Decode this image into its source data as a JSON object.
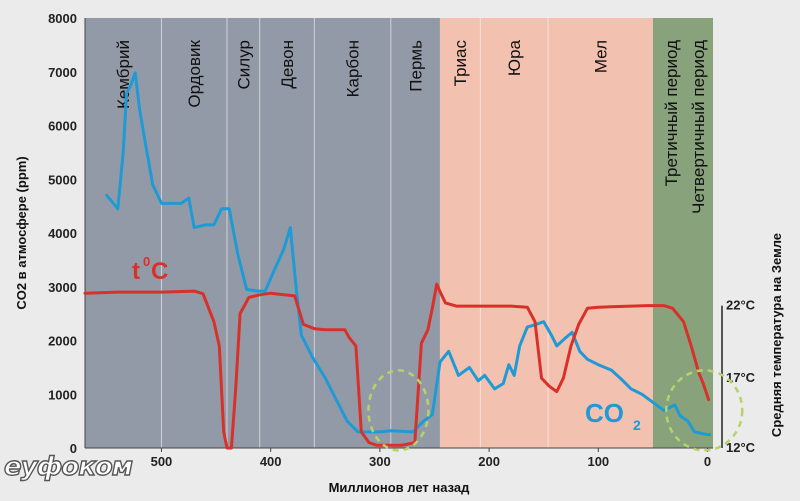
{
  "chart_data": {
    "type": "line",
    "x_axis": {
      "label": "Миллионов лет назад",
      "min": 570,
      "max": -5,
      "ticks": [
        500,
        400,
        300,
        200,
        100,
        0
      ]
    },
    "y_axis_left": {
      "label": "CO2 в атмосфере (ppm)",
      "min": 0,
      "max": 8000,
      "ticks": [
        0,
        1000,
        2000,
        3000,
        4000,
        5000,
        6000,
        7000,
        8000
      ]
    },
    "y_axis_right": {
      "label": "Средняя температура на Земле",
      "ticks": [
        {
          "label": "12°C",
          "co2_equiv": 0
        },
        {
          "label": "17°C",
          "co2_equiv": 1300
        },
        {
          "label": "22°C",
          "co2_equiv": 2650
        }
      ]
    },
    "backgrounds": [
      {
        "name": "paleozoic",
        "from": 570,
        "to": 245,
        "color": "#939aa7"
      },
      {
        "name": "mesozoic",
        "from": 245,
        "to": 50,
        "color": "#f3c1af"
      },
      {
        "name": "cenozoic",
        "from": 50,
        "to": -5,
        "color": "#88a37b"
      }
    ],
    "periods": [
      {
        "label": "Кембрий",
        "from": 570,
        "to": 500
      },
      {
        "label": "Ордовик",
        "from": 500,
        "to": 440
      },
      {
        "label": "Силур",
        "from": 440,
        "to": 410
      },
      {
        "label": "Девон",
        "from": 410,
        "to": 360
      },
      {
        "label": "Карбон",
        "from": 360,
        "to": 290
      },
      {
        "label": "Пермь",
        "from": 290,
        "to": 245
      },
      {
        "label": "Триас",
        "from": 245,
        "to": 208
      },
      {
        "label": "Юра",
        "from": 208,
        "to": 146
      },
      {
        "label": "Мел",
        "from": 146,
        "to": 50
      },
      {
        "label": "Третичный период",
        "from": 50,
        "to": 2
      },
      {
        "label": "Четвертичный период",
        "from": 50,
        "to": -5
      }
    ],
    "series": [
      {
        "name": "CO2",
        "label": "CO",
        "subscript": "2",
        "color": "#1e9ad6",
        "points": [
          [
            550,
            4700
          ],
          [
            540,
            4450
          ],
          [
            535,
            5500
          ],
          [
            532,
            6600
          ],
          [
            528,
            6750
          ],
          [
            524,
            6980
          ],
          [
            520,
            6300
          ],
          [
            515,
            5700
          ],
          [
            508,
            4900
          ],
          [
            500,
            4550
          ],
          [
            490,
            4550
          ],
          [
            482,
            4550
          ],
          [
            475,
            4650
          ],
          [
            470,
            4100
          ],
          [
            460,
            4150
          ],
          [
            452,
            4150
          ],
          [
            445,
            4450
          ],
          [
            438,
            4450
          ],
          [
            430,
            3600
          ],
          [
            422,
            2950
          ],
          [
            412,
            2920
          ],
          [
            405,
            2920
          ],
          [
            398,
            3250
          ],
          [
            388,
            3700
          ],
          [
            382,
            4100
          ],
          [
            377,
            3050
          ],
          [
            372,
            2100
          ],
          [
            362,
            1700
          ],
          [
            350,
            1300
          ],
          [
            340,
            900
          ],
          [
            330,
            500
          ],
          [
            320,
            300
          ],
          [
            300,
            300
          ],
          [
            290,
            320
          ],
          [
            270,
            300
          ],
          [
            260,
            500
          ],
          [
            252,
            620
          ],
          [
            245,
            1600
          ],
          [
            237,
            1800
          ],
          [
            228,
            1350
          ],
          [
            218,
            1500
          ],
          [
            210,
            1250
          ],
          [
            204,
            1350
          ],
          [
            195,
            1100
          ],
          [
            187,
            1200
          ],
          [
            182,
            1550
          ],
          [
            177,
            1350
          ],
          [
            172,
            1900
          ],
          [
            165,
            2250
          ],
          [
            157,
            2300
          ],
          [
            150,
            2350
          ],
          [
            143,
            2100
          ],
          [
            138,
            1900
          ],
          [
            130,
            2050
          ],
          [
            124,
            2150
          ],
          [
            117,
            1800
          ],
          [
            110,
            1650
          ],
          [
            100,
            1550
          ],
          [
            88,
            1450
          ],
          [
            80,
            1300
          ],
          [
            70,
            1100
          ],
          [
            60,
            1000
          ],
          [
            50,
            850
          ],
          [
            40,
            700
          ],
          [
            30,
            800
          ],
          [
            25,
            600
          ],
          [
            18,
            500
          ],
          [
            12,
            300
          ],
          [
            0,
            250
          ],
          [
            -2,
            250
          ]
        ]
      },
      {
        "name": "temperature",
        "label": "t",
        "superscript": "0",
        "unit": "C",
        "color": "#d7312a",
        "points": [
          [
            570,
            2880
          ],
          [
            540,
            2900
          ],
          [
            500,
            2900
          ],
          [
            470,
            2920
          ],
          [
            462,
            2870
          ],
          [
            452,
            2350
          ],
          [
            447,
            1900
          ],
          [
            443,
            300
          ],
          [
            440,
            0
          ],
          [
            436,
            0
          ],
          [
            432,
            1100
          ],
          [
            428,
            2500
          ],
          [
            420,
            2800
          ],
          [
            410,
            2850
          ],
          [
            400,
            2880
          ],
          [
            388,
            2850
          ],
          [
            378,
            2830
          ],
          [
            370,
            2300
          ],
          [
            360,
            2220
          ],
          [
            350,
            2200
          ],
          [
            340,
            2200
          ],
          [
            332,
            2200
          ],
          [
            328,
            2050
          ],
          [
            322,
            1900
          ],
          [
            317,
            300
          ],
          [
            310,
            100
          ],
          [
            303,
            50
          ],
          [
            290,
            50
          ],
          [
            280,
            50
          ],
          [
            268,
            100
          ],
          [
            262,
            1950
          ],
          [
            256,
            2200
          ],
          [
            252,
            2600
          ],
          [
            248,
            3050
          ],
          [
            244,
            2870
          ],
          [
            240,
            2700
          ],
          [
            230,
            2640
          ],
          [
            220,
            2640
          ],
          [
            200,
            2640
          ],
          [
            180,
            2640
          ],
          [
            165,
            2620
          ],
          [
            158,
            2350
          ],
          [
            152,
            1300
          ],
          [
            145,
            1150
          ],
          [
            138,
            1050
          ],
          [
            132,
            1300
          ],
          [
            125,
            1900
          ],
          [
            118,
            2300
          ],
          [
            110,
            2600
          ],
          [
            100,
            2620
          ],
          [
            85,
            2630
          ],
          [
            70,
            2640
          ],
          [
            55,
            2650
          ],
          [
            40,
            2650
          ],
          [
            32,
            2600
          ],
          [
            22,
            2350
          ],
          [
            15,
            1900
          ],
          [
            8,
            1400
          ],
          [
            4,
            1200
          ],
          [
            -1,
            900
          ]
        ]
      }
    ],
    "annotations": [
      {
        "type": "dashed-ellipse",
        "label": "",
        "color": "#b5d36a",
        "center": [
          283,
          700
        ]
      },
      {
        "type": "dashed-ellipse",
        "label": "",
        "color": "#b5d36a",
        "center": [
          3,
          700
        ]
      }
    ]
  },
  "logo_text": "eуфоком"
}
